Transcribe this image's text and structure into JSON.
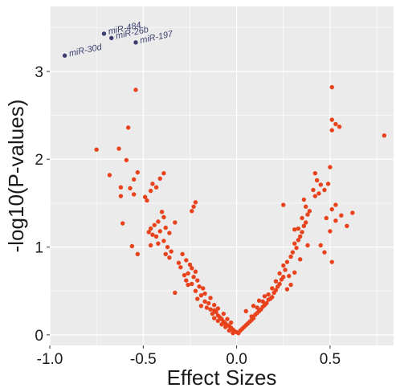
{
  "chart_data": {
    "type": "scatter",
    "title": "",
    "xlabel": "Effect Sizes",
    "ylabel": "-log10(P-values)",
    "xlim": [
      -1.0,
      0.84
    ],
    "ylim": [
      -0.12,
      3.74
    ],
    "x_ticks": [
      -1.0,
      -0.5,
      0.0,
      0.5
    ],
    "x_tick_labels": [
      "-1.0",
      "-0.5",
      "0.0",
      "0.5"
    ],
    "y_ticks": [
      0,
      1,
      2,
      3
    ],
    "y_tick_labels": [
      "0",
      "1",
      "2",
      "3"
    ],
    "grid": true,
    "legend": "none",
    "colors": {
      "panel_background": "#ebebeb",
      "grid": "#ffffff",
      "points": "#e8431c",
      "highlight": "#3b3f6e"
    },
    "highlighted": [
      {
        "label": "miR-30d",
        "x": -0.92,
        "y": 3.18
      },
      {
        "label": "miR-484",
        "x": -0.71,
        "y": 3.43
      },
      {
        "label": "miR-26b",
        "x": -0.67,
        "y": 3.38
      },
      {
        "label": "miR-197",
        "x": -0.54,
        "y": 3.33
      }
    ],
    "points": [
      {
        "x": -0.54,
        "y": 2.79
      },
      {
        "x": -0.58,
        "y": 2.36
      },
      {
        "x": -0.75,
        "y": 2.11
      },
      {
        "x": -0.63,
        "y": 2.12
      },
      {
        "x": -0.59,
        "y": 1.99
      },
      {
        "x": -0.53,
        "y": 1.85
      },
      {
        "x": -0.55,
        "y": 1.77
      },
      {
        "x": -0.68,
        "y": 1.82
      },
      {
        "x": -0.62,
        "y": 1.68
      },
      {
        "x": -0.57,
        "y": 1.67
      },
      {
        "x": -0.55,
        "y": 1.6
      },
      {
        "x": -0.62,
        "y": 1.58
      },
      {
        "x": -0.39,
        "y": 1.84
      },
      {
        "x": -0.41,
        "y": 1.78
      },
      {
        "x": -0.45,
        "y": 1.72
      },
      {
        "x": -0.43,
        "y": 1.68
      },
      {
        "x": -0.46,
        "y": 1.64
      },
      {
        "x": -0.49,
        "y": 1.57
      },
      {
        "x": -0.48,
        "y": 1.53
      },
      {
        "x": -0.22,
        "y": 1.51
      },
      {
        "x": -0.23,
        "y": 1.46
      },
      {
        "x": -0.24,
        "y": 1.41
      },
      {
        "x": -0.61,
        "y": 1.27
      },
      {
        "x": -0.56,
        "y": 1.01
      },
      {
        "x": -0.53,
        "y": 0.92
      },
      {
        "x": -0.4,
        "y": 1.4
      },
      {
        "x": -0.39,
        "y": 1.34
      },
      {
        "x": -0.42,
        "y": 1.29
      },
      {
        "x": -0.44,
        "y": 1.25
      },
      {
        "x": -0.46,
        "y": 1.21
      },
      {
        "x": -0.47,
        "y": 1.17
      },
      {
        "x": -0.45,
        "y": 1.14
      },
      {
        "x": -0.43,
        "y": 1.12
      },
      {
        "x": -0.41,
        "y": 1.18
      },
      {
        "x": -0.38,
        "y": 1.22
      },
      {
        "x": -0.36,
        "y": 1.16
      },
      {
        "x": -0.39,
        "y": 1.07
      },
      {
        "x": -0.42,
        "y": 1.04
      },
      {
        "x": -0.46,
        "y": 1.02
      },
      {
        "x": -0.37,
        "y": 1.0
      },
      {
        "x": -0.35,
        "y": 0.95
      },
      {
        "x": -0.38,
        "y": 0.92
      },
      {
        "x": -0.36,
        "y": 0.88
      },
      {
        "x": -0.33,
        "y": 1.28
      },
      {
        "x": -0.29,
        "y": 0.92
      },
      {
        "x": -0.27,
        "y": 0.85
      },
      {
        "x": -0.25,
        "y": 0.8
      },
      {
        "x": -0.24,
        "y": 0.76
      },
      {
        "x": -0.22,
        "y": 0.72
      },
      {
        "x": -0.26,
        "y": 0.7
      },
      {
        "x": -0.23,
        "y": 0.66
      },
      {
        "x": -0.21,
        "y": 0.62
      },
      {
        "x": -0.24,
        "y": 0.58
      },
      {
        "x": -0.2,
        "y": 0.55
      },
      {
        "x": -0.18,
        "y": 0.53
      },
      {
        "x": -0.22,
        "y": 0.5
      },
      {
        "x": -0.33,
        "y": 0.48
      },
      {
        "x": -0.19,
        "y": 0.45
      },
      {
        "x": -0.21,
        "y": 0.41
      },
      {
        "x": -0.17,
        "y": 0.38
      },
      {
        "x": -0.15,
        "y": 0.36
      },
      {
        "x": -0.19,
        "y": 0.33
      },
      {
        "x": -0.16,
        "y": 0.31
      },
      {
        "x": -0.14,
        "y": 0.29
      },
      {
        "x": -0.12,
        "y": 0.28
      },
      {
        "x": -0.11,
        "y": 0.26
      },
      {
        "x": -0.13,
        "y": 0.24
      },
      {
        "x": -0.1,
        "y": 0.22
      },
      {
        "x": -0.09,
        "y": 0.2
      },
      {
        "x": -0.12,
        "y": 0.19
      },
      {
        "x": -0.08,
        "y": 0.18
      },
      {
        "x": -0.1,
        "y": 0.16
      },
      {
        "x": -0.07,
        "y": 0.15
      },
      {
        "x": -0.06,
        "y": 0.13
      },
      {
        "x": -0.08,
        "y": 0.12
      },
      {
        "x": -0.05,
        "y": 0.11
      },
      {
        "x": -0.04,
        "y": 0.1
      },
      {
        "x": -0.06,
        "y": 0.09
      },
      {
        "x": -0.03,
        "y": 0.08
      },
      {
        "x": -0.02,
        "y": 0.06
      },
      {
        "x": -0.04,
        "y": 0.05
      },
      {
        "x": -0.01,
        "y": 0.04
      },
      {
        "x": 0.0,
        "y": 0.03
      },
      {
        "x": -0.02,
        "y": 0.02
      },
      {
        "x": 0.01,
        "y": 0.02
      },
      {
        "x": 0.02,
        "y": 0.05
      },
      {
        "x": 0.03,
        "y": 0.07
      },
      {
        "x": 0.04,
        "y": 0.09
      },
      {
        "x": 0.05,
        "y": 0.11
      },
      {
        "x": 0.06,
        "y": 0.13
      },
      {
        "x": 0.07,
        "y": 0.15
      },
      {
        "x": 0.08,
        "y": 0.17
      },
      {
        "x": 0.09,
        "y": 0.19
      },
      {
        "x": 0.08,
        "y": 0.21
      },
      {
        "x": 0.1,
        "y": 0.23
      },
      {
        "x": 0.11,
        "y": 0.25
      },
      {
        "x": 0.12,
        "y": 0.27
      },
      {
        "x": 0.13,
        "y": 0.29
      },
      {
        "x": 0.11,
        "y": 0.31
      },
      {
        "x": 0.14,
        "y": 0.32
      },
      {
        "x": 0.15,
        "y": 0.34
      },
      {
        "x": 0.16,
        "y": 0.36
      },
      {
        "x": 0.14,
        "y": 0.38
      },
      {
        "x": 0.17,
        "y": 0.4
      },
      {
        "x": 0.18,
        "y": 0.41
      },
      {
        "x": 0.19,
        "y": 0.43
      },
      {
        "x": 0.17,
        "y": 0.46
      },
      {
        "x": 0.2,
        "y": 0.48
      },
      {
        "x": 0.21,
        "y": 0.51
      },
      {
        "x": 0.19,
        "y": 0.53
      },
      {
        "x": 0.22,
        "y": 0.55
      },
      {
        "x": 0.23,
        "y": 0.58
      },
      {
        "x": 0.21,
        "y": 0.61
      },
      {
        "x": 0.24,
        "y": 0.63
      },
      {
        "x": 0.25,
        "y": 0.66
      },
      {
        "x": 0.23,
        "y": 0.7
      },
      {
        "x": 0.26,
        "y": 0.74
      },
      {
        "x": 0.25,
        "y": 0.79
      },
      {
        "x": 0.27,
        "y": 0.83
      },
      {
        "x": 0.29,
        "y": 0.89
      },
      {
        "x": 0.3,
        "y": 0.94
      },
      {
        "x": 0.32,
        "y": 0.99
      },
      {
        "x": 0.31,
        "y": 1.04
      },
      {
        "x": 0.33,
        "y": 1.08
      },
      {
        "x": 0.34,
        "y": 1.12
      },
      {
        "x": 0.35,
        "y": 1.17
      },
      {
        "x": 0.33,
        "y": 1.21
      },
      {
        "x": 0.36,
        "y": 1.24
      },
      {
        "x": 0.37,
        "y": 1.28
      },
      {
        "x": 0.35,
        "y": 1.33
      },
      {
        "x": 0.38,
        "y": 1.37
      },
      {
        "x": 0.39,
        "y": 1.41
      },
      {
        "x": 0.37,
        "y": 1.46
      },
      {
        "x": 0.36,
        "y": 1.54
      },
      {
        "x": 0.42,
        "y": 1.58
      },
      {
        "x": 0.44,
        "y": 1.61
      },
      {
        "x": 0.41,
        "y": 1.65
      },
      {
        "x": 0.45,
        "y": 1.71
      },
      {
        "x": 0.43,
        "y": 1.76
      },
      {
        "x": 0.42,
        "y": 1.84
      },
      {
        "x": 0.49,
        "y": 1.72
      },
      {
        "x": 0.5,
        "y": 1.91
      },
      {
        "x": 0.47,
        "y": 1.65
      },
      {
        "x": 0.51,
        "y": 1.43
      },
      {
        "x": 0.53,
        "y": 1.48
      },
      {
        "x": 0.48,
        "y": 1.33
      },
      {
        "x": 0.56,
        "y": 1.36
      },
      {
        "x": 0.59,
        "y": 1.24
      },
      {
        "x": 0.62,
        "y": 1.39
      },
      {
        "x": 0.45,
        "y": 1.02
      },
      {
        "x": 0.47,
        "y": 0.94
      },
      {
        "x": 0.51,
        "y": 0.83
      },
      {
        "x": 0.5,
        "y": 1.18
      },
      {
        "x": 0.53,
        "y": 1.3
      },
      {
        "x": 0.51,
        "y": 2.82
      },
      {
        "x": 0.51,
        "y": 2.45
      },
      {
        "x": 0.53,
        "y": 2.4
      },
      {
        "x": 0.51,
        "y": 2.33
      },
      {
        "x": 0.55,
        "y": 2.37
      },
      {
        "x": 0.79,
        "y": 2.27
      },
      {
        "x": 0.31,
        "y": 0.71
      },
      {
        "x": 0.28,
        "y": 0.67
      },
      {
        "x": 0.29,
        "y": 0.57
      },
      {
        "x": 0.27,
        "y": 0.52
      },
      {
        "x": 0.25,
        "y": 1.48
      },
      {
        "x": 0.31,
        "y": 1.2
      },
      {
        "x": 0.34,
        "y": 0.86
      },
      {
        "x": 0.38,
        "y": 1.02
      },
      {
        "x": -0.31,
        "y": 0.82
      },
      {
        "x": -0.3,
        "y": 0.77
      },
      {
        "x": -0.28,
        "y": 0.68
      },
      {
        "x": -0.27,
        "y": 0.62
      },
      {
        "x": -0.26,
        "y": 0.57
      },
      {
        "x": -0.17,
        "y": 0.47
      },
      {
        "x": -0.14,
        "y": 0.42
      },
      {
        "x": -0.12,
        "y": 0.34
      },
      {
        "x": -0.1,
        "y": 0.3
      },
      {
        "x": -0.07,
        "y": 0.24
      },
      {
        "x": -0.05,
        "y": 0.18
      },
      {
        "x": -0.03,
        "y": 0.14
      },
      {
        "x": 0.05,
        "y": 0.27
      },
      {
        "x": 0.09,
        "y": 0.33
      },
      {
        "x": 0.12,
        "y": 0.39
      },
      {
        "x": 0.15,
        "y": 0.44
      }
    ]
  }
}
